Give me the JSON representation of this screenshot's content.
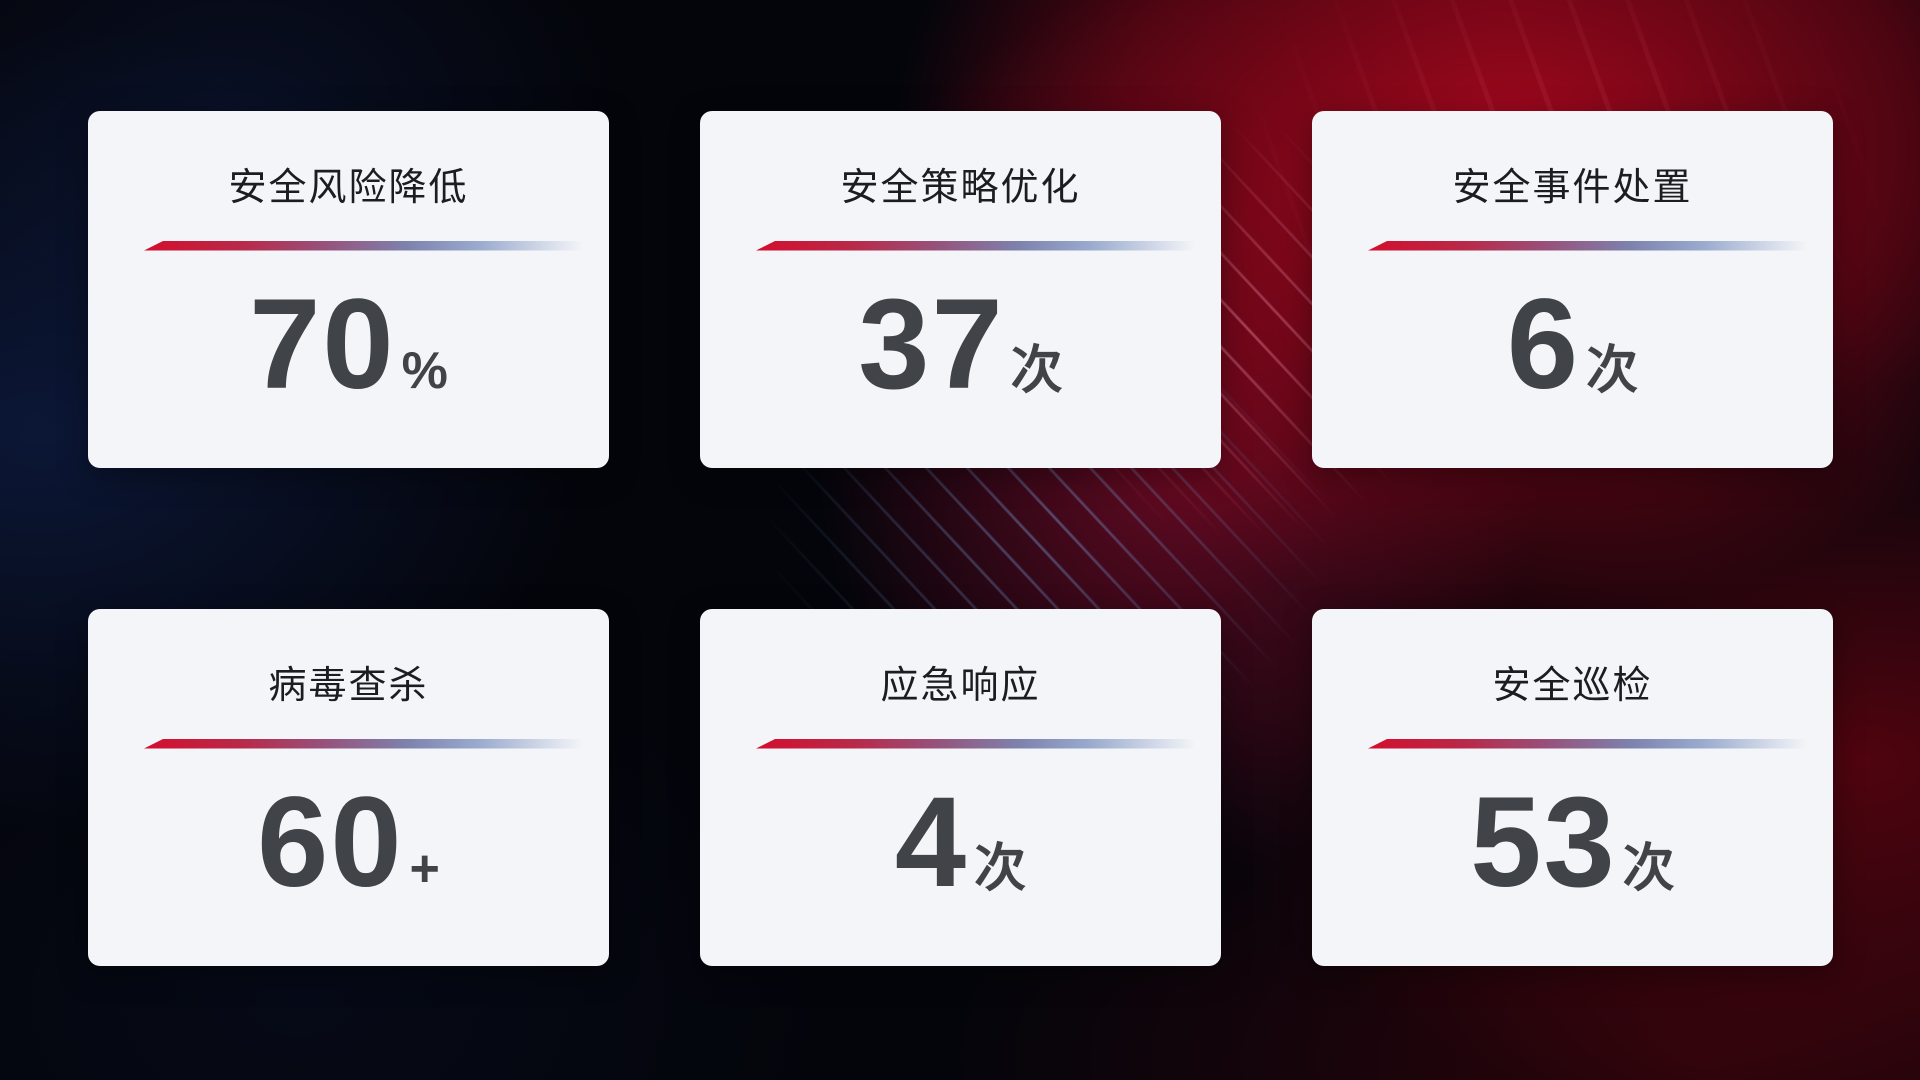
{
  "cards": [
    {
      "title": "安全风险降低",
      "value": "70",
      "unit": "%"
    },
    {
      "title": "安全策略优化",
      "value": "37",
      "unit": "次"
    },
    {
      "title": "安全事件处置",
      "value": "6",
      "unit": "次"
    },
    {
      "title": "病毒查杀",
      "value": "60",
      "unit": "+"
    },
    {
      "title": "应急响应",
      "value": "4",
      "unit": "次"
    },
    {
      "title": "安全巡检",
      "value": "53",
      "unit": "次"
    }
  ],
  "colors": {
    "bg_base": "#04050b",
    "card_bg": "#f4f5f8",
    "title_text": "#1b1d20",
    "value_text": "#404347",
    "divider_red": "#d40e2e",
    "divider_mauve": "#96527c",
    "divider_slate": "#7d82ad",
    "divider_steel": "#9aabce",
    "bg_red_glow": "#a50a1f",
    "bg_blue_glow": "#12265a",
    "streak_blue": "#78aaeb",
    "streak_pink": "#eb8caa"
  }
}
